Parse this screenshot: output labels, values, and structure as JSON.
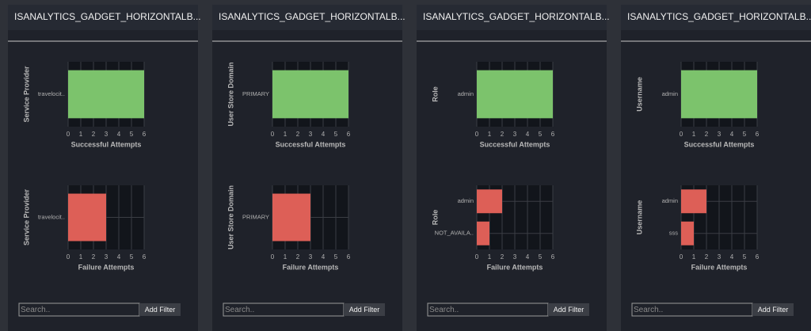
{
  "panels": [
    {
      "title": "ISANALYTICS_GADGET_HORIZONTALB...",
      "search_placeholder": "Search..",
      "button": "Add Filter"
    },
    {
      "title": "ISANALYTICS_GADGET_HORIZONTALB...",
      "search_placeholder": "Search..",
      "button": "Add Filter"
    },
    {
      "title": "ISANALYTICS_GADGET_HORIZONTALB...",
      "search_placeholder": "Search..",
      "button": "Add Filter"
    },
    {
      "title": "ISANALYTICS_GADGET_HORIZONTALB...",
      "search_placeholder": "Search..",
      "button": "Add Filter"
    }
  ],
  "chart_data": [
    {
      "type": "bar",
      "horizontal": true,
      "y_label": "Service Provider",
      "x_label": "Successful Attempts",
      "categories": [
        "travelocit.."
      ],
      "values": [
        6
      ],
      "color": "#7cc36c",
      "xlim": [
        0,
        6
      ],
      "xticks": [
        0,
        1,
        2,
        3,
        4,
        5,
        6
      ],
      "grid": true
    },
    {
      "type": "bar",
      "horizontal": true,
      "y_label": "Service Provider",
      "x_label": "Failure Attempts",
      "categories": [
        "travelocit.."
      ],
      "values": [
        3
      ],
      "color": "#dd5f57",
      "xlim": [
        0,
        6
      ],
      "xticks": [
        0,
        1,
        2,
        3,
        4,
        5,
        6
      ],
      "grid": true
    },
    {
      "type": "bar",
      "horizontal": true,
      "y_label": "User Store Domain",
      "x_label": "Successful Attempts",
      "categories": [
        "PRIMARY"
      ],
      "values": [
        6
      ],
      "color": "#7cc36c",
      "xlim": [
        0,
        6
      ],
      "xticks": [
        0,
        1,
        2,
        3,
        4,
        5,
        6
      ],
      "grid": true
    },
    {
      "type": "bar",
      "horizontal": true,
      "y_label": "User Store Domain",
      "x_label": "Failure Attempts",
      "categories": [
        "PRIMARY"
      ],
      "values": [
        3
      ],
      "color": "#dd5f57",
      "xlim": [
        0,
        6
      ],
      "xticks": [
        0,
        1,
        2,
        3,
        4,
        5,
        6
      ],
      "grid": true
    },
    {
      "type": "bar",
      "horizontal": true,
      "y_label": "Role",
      "x_label": "Successful Attempts",
      "categories": [
        "admin"
      ],
      "values": [
        6
      ],
      "color": "#7cc36c",
      "xlim": [
        0,
        6
      ],
      "xticks": [
        0,
        1,
        2,
        3,
        4,
        5,
        6
      ],
      "grid": true
    },
    {
      "type": "bar",
      "horizontal": true,
      "y_label": "Role",
      "x_label": "Failure Attempts",
      "categories": [
        "admin",
        "NOT_AVAILA.."
      ],
      "values": [
        2,
        1
      ],
      "color": "#dd5f57",
      "xlim": [
        0,
        6
      ],
      "xticks": [
        0,
        1,
        2,
        3,
        4,
        5,
        6
      ],
      "grid": true
    },
    {
      "type": "bar",
      "horizontal": true,
      "y_label": "Username",
      "x_label": "Successful Attempts",
      "categories": [
        "admin"
      ],
      "values": [
        6
      ],
      "color": "#7cc36c",
      "xlim": [
        0,
        6
      ],
      "xticks": [
        0,
        1,
        2,
        3,
        4,
        5,
        6
      ],
      "grid": true
    },
    {
      "type": "bar",
      "horizontal": true,
      "y_label": "Username",
      "x_label": "Failure Attempts",
      "categories": [
        "admin",
        "sss"
      ],
      "values": [
        2,
        1
      ],
      "color": "#dd5f57",
      "xlim": [
        0,
        6
      ],
      "xticks": [
        0,
        1,
        2,
        3,
        4,
        5,
        6
      ],
      "grid": true
    }
  ]
}
